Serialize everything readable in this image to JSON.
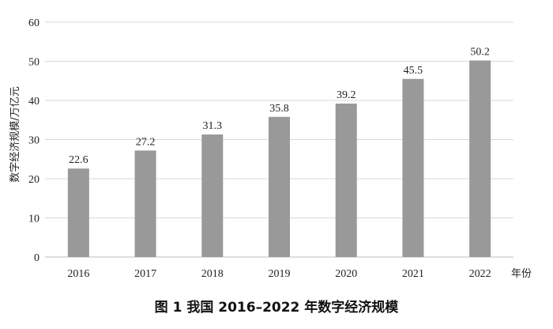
{
  "chart_data": {
    "type": "bar",
    "categories": [
      "2016",
      "2017",
      "2018",
      "2019",
      "2020",
      "2021",
      "2022"
    ],
    "values": [
      22.6,
      27.2,
      31.3,
      35.8,
      39.2,
      45.5,
      50.2
    ],
    "data_labels": [
      "22.6",
      "27.2",
      "31.3",
      "35.8",
      "39.2",
      "45.5",
      "50.2"
    ],
    "yticks": [
      "0",
      "10",
      "20",
      "30",
      "40",
      "50",
      "60"
    ],
    "ylim": [
      0,
      60
    ],
    "ylabel": "数字经济规模/万亿元",
    "xlabel": "年份",
    "grid": true,
    "legend": "none",
    "bar_color": "#999999",
    "grid_color": "#d9d9d9",
    "axis_color": "#bfbfbf"
  },
  "caption": "图 1   我国 2016–2022 年数字经济规模"
}
